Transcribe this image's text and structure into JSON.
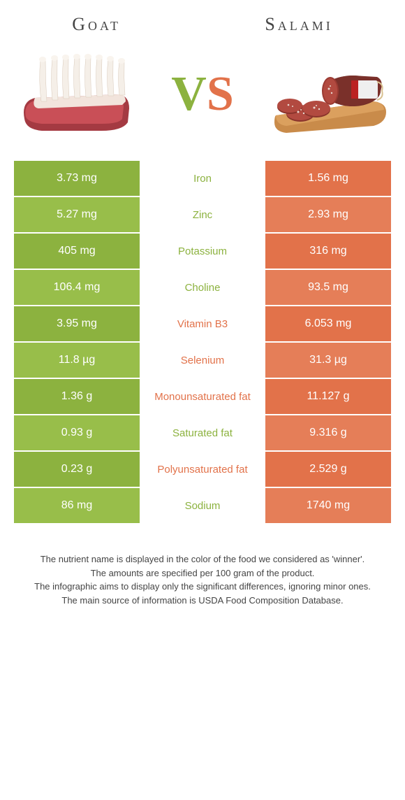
{
  "colors": {
    "goat": "#8cb23f",
    "salami": "#e2724a",
    "goat_alt": "#98be4a",
    "salami_alt": "#e57e58",
    "text_dark": "#444444"
  },
  "foods": {
    "left": {
      "name": "Goat"
    },
    "right": {
      "name": "Salami"
    }
  },
  "vs_label": {
    "v": "V",
    "s": "S"
  },
  "rows": [
    {
      "nutrient": "Iron",
      "left": "3.73 mg",
      "right": "1.56 mg",
      "winner": "left"
    },
    {
      "nutrient": "Zinc",
      "left": "5.27 mg",
      "right": "2.93 mg",
      "winner": "left"
    },
    {
      "nutrient": "Potassium",
      "left": "405 mg",
      "right": "316 mg",
      "winner": "left"
    },
    {
      "nutrient": "Choline",
      "left": "106.4 mg",
      "right": "93.5 mg",
      "winner": "left"
    },
    {
      "nutrient": "Vitamin B3",
      "left": "3.95 mg",
      "right": "6.053 mg",
      "winner": "right"
    },
    {
      "nutrient": "Selenium",
      "left": "11.8 µg",
      "right": "31.3 µg",
      "winner": "right"
    },
    {
      "nutrient": "Monounsaturated fat",
      "left": "1.36 g",
      "right": "11.127 g",
      "winner": "right"
    },
    {
      "nutrient": "Saturated fat",
      "left": "0.93 g",
      "right": "9.316 g",
      "winner": "left"
    },
    {
      "nutrient": "Polyunsaturated fat",
      "left": "0.23 g",
      "right": "2.529 g",
      "winner": "right"
    },
    {
      "nutrient": "Sodium",
      "left": "86 mg",
      "right": "1740 mg",
      "winner": "left"
    }
  ],
  "footnotes": [
    "The nutrient name is displayed in the color of the food we considered as 'winner'.",
    "The amounts are specified per 100 gram of the product.",
    "The infographic aims to display only the significant differences, ignoring minor ones.",
    "The main source of information is USDA Food Composition Database."
  ]
}
